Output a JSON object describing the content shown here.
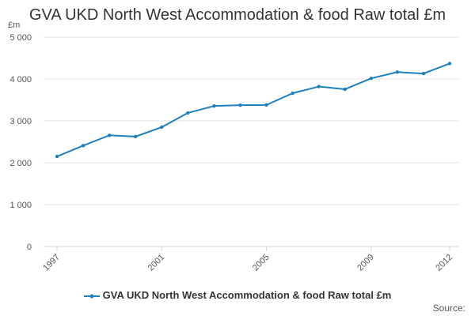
{
  "chart_data": {
    "type": "line",
    "title": "GVA UKD North West Accommodation & food Raw total £m",
    "ylabel": "£m",
    "xlabel": "",
    "x": [
      1997,
      1998,
      1999,
      2000,
      2001,
      2002,
      2003,
      2004,
      2005,
      2006,
      2007,
      2008,
      2009,
      2010,
      2011,
      2012
    ],
    "x_tick_labels": [
      "1997",
      "2001",
      "2005",
      "2009",
      "2012"
    ],
    "y_tick_labels": [
      "0",
      "1 000",
      "2 000",
      "3 000",
      "4 000",
      "5 000"
    ],
    "y_ticks": [
      0,
      1000,
      2000,
      3000,
      4000,
      5000
    ],
    "ylim": [
      0,
      5000
    ],
    "grid": true,
    "legend_position": "bottom",
    "series": [
      {
        "name": "GVA UKD North West Accommodation & food Raw total £m",
        "color": "#1f7fbf",
        "values": [
          2150,
          2410,
          2655,
          2625,
          2850,
          3190,
          3355,
          3375,
          3380,
          3660,
          3820,
          3755,
          4015,
          4165,
          4130,
          4370
        ]
      }
    ],
    "source_label": "Source:"
  }
}
